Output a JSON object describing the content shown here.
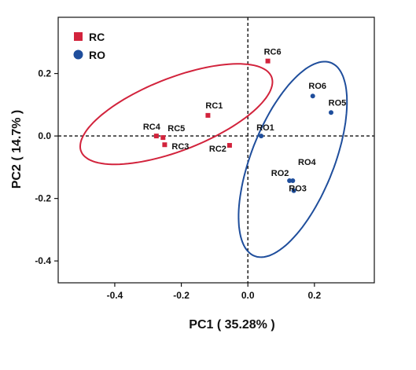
{
  "chart_data": {
    "type": "scatter",
    "title": "",
    "xlabel": "PC1 ( 35.28% )",
    "ylabel": "PC2 ( 14.7% )",
    "xlim": [
      -0.57,
      0.38
    ],
    "ylim": [
      -0.47,
      0.38
    ],
    "xticks": [
      -0.4,
      -0.2,
      0.0,
      0.2
    ],
    "xtick_labels": [
      "-0.4",
      "-0.2",
      "0.0",
      "0.2"
    ],
    "yticks": [
      0.2,
      0.0,
      -0.2,
      -0.4
    ],
    "ytick_labels": [
      "0.2",
      "0.0",
      "-0.2",
      "-0.4"
    ],
    "reference_lines": {
      "x": 0,
      "y": 0,
      "style": "dashed"
    },
    "legend_position": "top-left",
    "series": [
      {
        "name": "RC",
        "marker": "square",
        "color": "#d2233c",
        "points": [
          {
            "label": "RC1",
            "x": -0.12,
            "y": 0.066
          },
          {
            "label": "RC2",
            "x": -0.055,
            "y": -0.03
          },
          {
            "label": "RC3",
            "x": -0.25,
            "y": -0.028
          },
          {
            "label": "RC4",
            "x": -0.275,
            "y": 0.0
          },
          {
            "label": "RC5",
            "x": -0.255,
            "y": -0.005
          },
          {
            "label": "RC6",
            "x": 0.06,
            "y": 0.24
          }
        ],
        "ellipse": {
          "cx": -0.215,
          "cy": 0.07,
          "rx": 0.31,
          "ry": 0.115,
          "angle_deg": 23
        }
      },
      {
        "name": "RO",
        "marker": "circle",
        "color": "#1f4e9c",
        "points": [
          {
            "label": "RO1",
            "x": 0.04,
            "y": 0.0
          },
          {
            "label": "RO2",
            "x": 0.125,
            "y": -0.143
          },
          {
            "label": "RO3",
            "x": 0.138,
            "y": -0.175
          },
          {
            "label": "RO4",
            "x": 0.135,
            "y": -0.143
          },
          {
            "label": "RO5",
            "x": 0.25,
            "y": 0.075
          },
          {
            "label": "RO6",
            "x": 0.195,
            "y": 0.128
          }
        ],
        "ellipse": {
          "cx": 0.135,
          "cy": -0.075,
          "rx": 0.33,
          "ry": 0.125,
          "angle_deg": 70
        }
      }
    ]
  }
}
